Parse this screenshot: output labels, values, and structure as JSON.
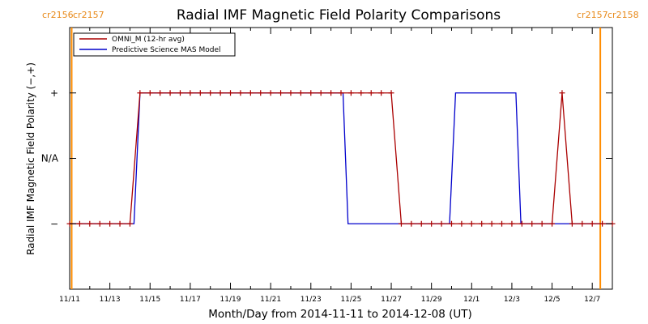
{
  "chart_data": {
    "type": "line",
    "title": "Radial IMF Magnetic Field Polarity Comparisons",
    "xlabel": "Month/Day from 2014-11-11 to 2014-12-08 (UT)",
    "ylabel": "Radial IMF Magnetic Field Polarity (−,+)",
    "xlim": [
      0,
      27
    ],
    "ylim": [
      -2,
      2
    ],
    "x_ticks": [
      {
        "day": 0,
        "label": "11/11"
      },
      {
        "day": 2,
        "label": "11/13"
      },
      {
        "day": 4,
        "label": "11/15"
      },
      {
        "day": 6,
        "label": "11/17"
      },
      {
        "day": 8,
        "label": "11/19"
      },
      {
        "day": 10,
        "label": "11/21"
      },
      {
        "day": 12,
        "label": "11/23"
      },
      {
        "day": 14,
        "label": "11/25"
      },
      {
        "day": 16,
        "label": "11/27"
      },
      {
        "day": 18,
        "label": "11/29"
      },
      {
        "day": 20,
        "label": "12/1"
      },
      {
        "day": 22,
        "label": "12/3"
      },
      {
        "day": 24,
        "label": "12/5"
      },
      {
        "day": 26,
        "label": "12/7"
      }
    ],
    "y_ticks": [
      {
        "value": 1,
        "label": "+"
      },
      {
        "value": 0,
        "label": "N/A"
      },
      {
        "value": -1,
        "label": "−"
      }
    ],
    "grid": false,
    "legend_position": "top-left",
    "series": [
      {
        "name": "OMNI_M (12-hr avg)",
        "color": "#aa0000",
        "marker": "plus",
        "points": [
          [
            0.0,
            -1
          ],
          [
            0.5,
            -1
          ],
          [
            1.0,
            -1
          ],
          [
            1.5,
            -1
          ],
          [
            2.0,
            -1
          ],
          [
            2.5,
            -1
          ],
          [
            3.0,
            -1
          ],
          [
            3.5,
            1
          ],
          [
            4.0,
            1
          ],
          [
            4.5,
            1
          ],
          [
            5.0,
            1
          ],
          [
            5.5,
            1
          ],
          [
            6.0,
            1
          ],
          [
            6.5,
            1
          ],
          [
            7.0,
            1
          ],
          [
            7.5,
            1
          ],
          [
            8.0,
            1
          ],
          [
            8.5,
            1
          ],
          [
            9.0,
            1
          ],
          [
            9.5,
            1
          ],
          [
            10.0,
            1
          ],
          [
            10.5,
            1
          ],
          [
            11.0,
            1
          ],
          [
            11.5,
            1
          ],
          [
            12.0,
            1
          ],
          [
            12.5,
            1
          ],
          [
            13.0,
            1
          ],
          [
            13.5,
            1
          ],
          [
            14.0,
            1
          ],
          [
            14.5,
            1
          ],
          [
            15.0,
            1
          ],
          [
            15.5,
            1
          ],
          [
            16.0,
            1
          ],
          [
            16.5,
            -1
          ],
          [
            17.0,
            -1
          ],
          [
            17.5,
            -1
          ],
          [
            18.0,
            -1
          ],
          [
            18.5,
            -1
          ],
          [
            19.0,
            -1
          ],
          [
            19.5,
            -1
          ],
          [
            20.0,
            -1
          ],
          [
            20.5,
            -1
          ],
          [
            21.0,
            -1
          ],
          [
            21.5,
            -1
          ],
          [
            22.0,
            -1
          ],
          [
            22.5,
            -1
          ],
          [
            23.0,
            -1
          ],
          [
            23.5,
            -1
          ],
          [
            24.0,
            -1
          ],
          [
            24.5,
            1
          ],
          [
            25.0,
            -1
          ],
          [
            25.5,
            -1
          ],
          [
            26.0,
            -1
          ],
          [
            26.5,
            -1
          ],
          [
            27.0,
            -1
          ]
        ]
      },
      {
        "name": "Predictive Science MAS Model",
        "color": "#0000cc",
        "marker": "none",
        "points": [
          [
            0.0,
            -1
          ],
          [
            3.2,
            -1
          ],
          [
            3.5,
            1
          ],
          [
            13.6,
            1
          ],
          [
            13.85,
            -1
          ],
          [
            18.9,
            -1
          ],
          [
            19.2,
            1
          ],
          [
            22.2,
            1
          ],
          [
            22.45,
            -1
          ],
          [
            27.0,
            -1
          ]
        ]
      }
    ],
    "carrington_rotations": {
      "left_labels": [
        "cr2156",
        "cr2157"
      ],
      "right_labels": [
        "cr2157",
        "cr2158"
      ],
      "boundaries_day": [
        0.1,
        26.4
      ],
      "color": "#ff8c00"
    }
  }
}
